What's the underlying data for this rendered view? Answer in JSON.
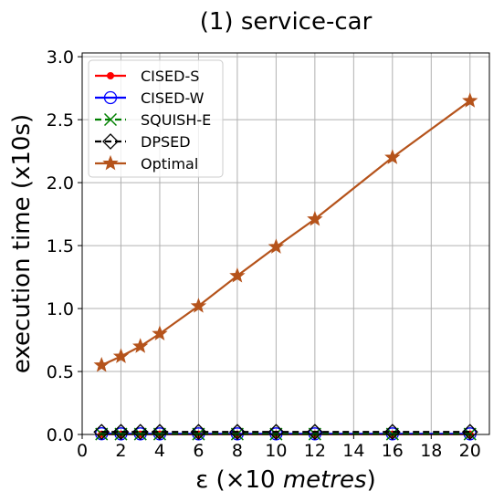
{
  "chart_data": {
    "type": "line",
    "title": "(1) service-car",
    "xlabel_prefix": "ε (×10 ",
    "xlabel_italic": "metres",
    "xlabel_suffix": ")",
    "ylabel": "execution time (x10s)",
    "xlim": [
      0,
      21
    ],
    "ylim": [
      0,
      3.03
    ],
    "xticks": [
      0,
      2,
      4,
      6,
      8,
      10,
      12,
      14,
      16,
      18,
      20
    ],
    "yticks": [
      0.0,
      0.5,
      1.0,
      1.5,
      2.0,
      2.5,
      3.0
    ],
    "ytick_labels": [
      "0.0",
      "0.5",
      "1.0",
      "1.5",
      "2.0",
      "2.5",
      "3.0"
    ],
    "grid": true,
    "legend_position": "top-left",
    "x": [
      1,
      2,
      3,
      4,
      6,
      8,
      10,
      12,
      16,
      20
    ],
    "series": [
      {
        "name": "CISED-S",
        "color": "#ff0000",
        "marker": "dot",
        "dash": "solid",
        "values": [
          0.002,
          0.002,
          0.002,
          0.002,
          0.002,
          0.002,
          0.002,
          0.002,
          0.002,
          0.002
        ]
      },
      {
        "name": "CISED-W",
        "color": "#0000ff",
        "marker": "circle",
        "dash": "solid",
        "values": [
          0.006,
          0.005,
          0.005,
          0.005,
          0.005,
          0.005,
          0.005,
          0.005,
          0.005,
          0.005
        ]
      },
      {
        "name": "SQUISH-E",
        "color": "#008000",
        "marker": "x",
        "dash": "dashed",
        "values": [
          0.003,
          0.003,
          0.003,
          0.003,
          0.003,
          0.003,
          0.003,
          0.003,
          0.003,
          0.003
        ]
      },
      {
        "name": "DPSED",
        "color": "#000000",
        "marker": "diamond",
        "dash": "dashed",
        "values": [
          0.02,
          0.02,
          0.02,
          0.02,
          0.02,
          0.02,
          0.02,
          0.02,
          0.02,
          0.02
        ]
      },
      {
        "name": "Optimal",
        "color": "#b5531b",
        "marker": "star",
        "dash": "solid",
        "values": [
          0.55,
          0.62,
          0.7,
          0.8,
          1.02,
          1.26,
          1.49,
          1.71,
          2.2,
          2.65
        ]
      }
    ]
  }
}
